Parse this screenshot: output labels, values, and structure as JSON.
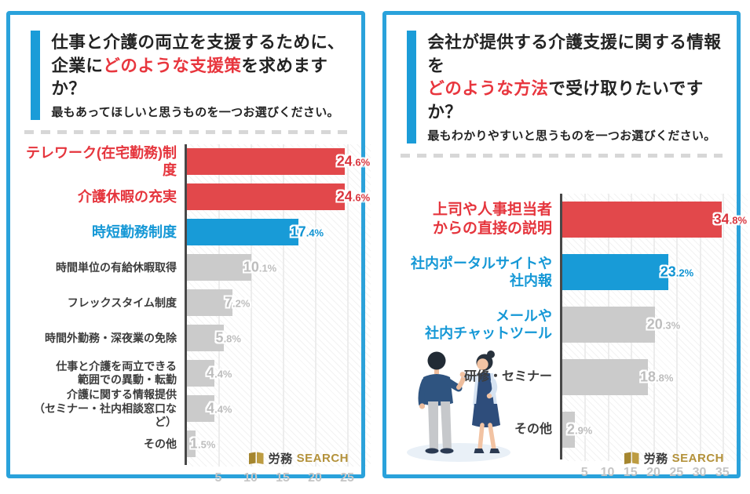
{
  "colors": {
    "panel_border": "#2aa2db",
    "accent": "#1b9cd8",
    "title_red": "#e8363e",
    "title_dark": "#232323",
    "red": {
      "bar": "#e2484b",
      "text": "#d9353e"
    },
    "blue": {
      "bar": "#189bd7",
      "text": "#0f93d2"
    },
    "gray": {
      "bar": "#cbcbcb",
      "text": "#bdbdbd"
    },
    "tick_text": "#c5c5c5",
    "logo_gold": "#b4923b"
  },
  "left_panel": {
    "title_lines": [
      [
        {
          "t": "仕事と介護の両立を支援するために、",
          "red": false
        }
      ],
      [
        {
          "t": "企業に",
          "red": false
        },
        {
          "t": "どのような支援策",
          "red": true
        },
        {
          "t": "を求めますか？",
          "red": false
        }
      ]
    ],
    "subtitle": "最もあってほしいと思うものを一つお選びください。",
    "logo": {
      "jp": "労務",
      "en": "SEARCH"
    }
  },
  "right_panel": {
    "title_lines": [
      [
        {
          "t": "会社が提供する介護支援に関する情報を",
          "red": false
        }
      ],
      [
        {
          "t": "どのような方法",
          "red": true
        },
        {
          "t": "で受け取りたいですか？",
          "red": false
        }
      ]
    ],
    "subtitle": "最もわかりやすいと思うものを一つお選びください。",
    "logo": {
      "jp": "労務",
      "en": "SEARCH"
    },
    "illustration": "two-people-talking-icon"
  },
  "chart_data": [
    {
      "id": "left",
      "type": "bar",
      "orientation": "horizontal",
      "unit": "%",
      "title": "仕事と介護の両立を支援するために、企業にどのような支援策を求めますか？",
      "ticks": [
        5,
        10,
        15,
        20,
        25
      ],
      "xlim": [
        0,
        26
      ],
      "grid": true,
      "rows": [
        {
          "label": "テレワーク(在宅勤務)制度",
          "value": 24.6,
          "bar_color": "red",
          "label_color": "red"
        },
        {
          "label": "介護休暇の充実",
          "value": 24.6,
          "bar_color": "red",
          "label_color": "red"
        },
        {
          "label": "時短勤務制度",
          "value": 17.4,
          "bar_color": "blue",
          "label_color": "blue"
        },
        {
          "label": "時間単位の有給休暇取得",
          "value": 10.1,
          "bar_color": "gray",
          "label_color": "dark"
        },
        {
          "label": "フレックスタイム制度",
          "value": 7.2,
          "bar_color": "gray",
          "label_color": "dark"
        },
        {
          "label": "時間外勤務・深夜業の免除",
          "value": 5.8,
          "bar_color": "gray",
          "label_color": "dark"
        },
        {
          "label": "仕事と介護を両立できる\n範囲での異動・転勤",
          "value": 4.4,
          "bar_color": "gray",
          "label_color": "dark"
        },
        {
          "label": "介護に関する情報提供\n（セミナー・社内相談窓口など）",
          "value": 4.4,
          "bar_color": "gray",
          "label_color": "dark"
        },
        {
          "label": "その他",
          "value": 1.5,
          "bar_color": "gray",
          "label_color": "dark"
        }
      ]
    },
    {
      "id": "right",
      "type": "bar",
      "orientation": "horizontal",
      "unit": "%",
      "title": "会社が提供する介護支援に関する情報をどのような方法で受け取りたいですか？",
      "ticks": [
        5,
        10,
        15,
        20,
        25,
        30,
        35
      ],
      "xlim": [
        0,
        37
      ],
      "grid": true,
      "rows": [
        {
          "label": "上司や人事担当者\nからの直接の説明",
          "value": 34.8,
          "bar_color": "red",
          "label_color": "red"
        },
        {
          "label": "社内ポータルサイトや\n社内報",
          "value": 23.2,
          "bar_color": "blue",
          "label_color": "blue"
        },
        {
          "label": "メールや\n社内チャットツール",
          "value": 20.3,
          "bar_color": "gray",
          "label_color": "blue"
        },
        {
          "label": "研修・セミナー",
          "value": 18.8,
          "bar_color": "gray",
          "label_color": "dark"
        },
        {
          "label": "その他",
          "value": 2.9,
          "bar_color": "gray",
          "label_color": "dark"
        }
      ]
    }
  ]
}
